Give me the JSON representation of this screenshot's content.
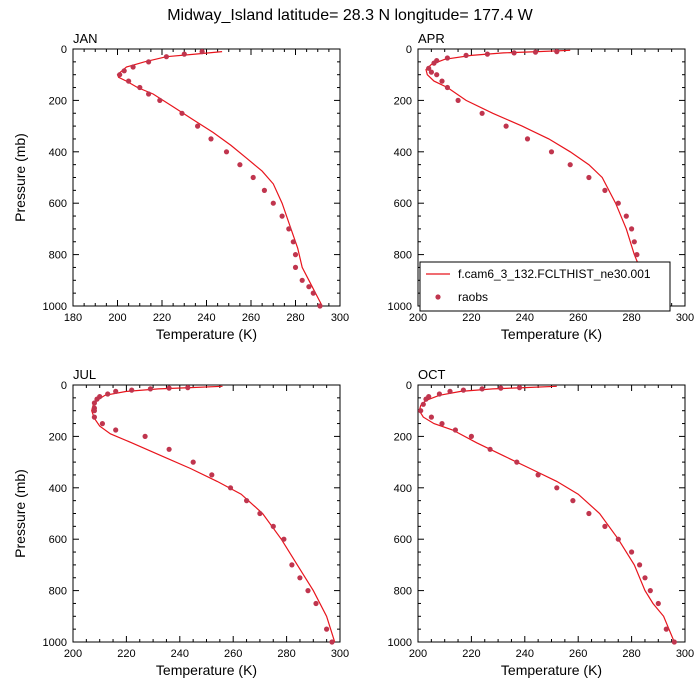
{
  "title": "Midway_Island  latitude= 28.3 N longitude= 177.4 W",
  "colors": {
    "model_line": "#e8141c",
    "obs_marker": "#c0354e",
    "axis": "#000000"
  },
  "legend": {
    "position": "lower-left of APR panel",
    "model_label": "f.cam6_3_132.FCLTHIST_ne30.001",
    "obs_label": "raobs"
  },
  "chart_data": [
    {
      "type": "line",
      "panel_title": "JAN",
      "xlabel": "Temperature (K)",
      "ylabel": "Pressure (mb)",
      "xlim": [
        180,
        300
      ],
      "ylim": [
        1000,
        0
      ],
      "y_reversed": true,
      "xticks": [
        "180",
        "200",
        "220",
        "240",
        "260",
        "280",
        "300"
      ],
      "yticks": [
        "0",
        "200",
        "400",
        "600",
        "800",
        "1000"
      ],
      "series": [
        {
          "kind": "line",
          "x": [
            247,
            235,
            222,
            212,
            204,
            200,
            200.5,
            204,
            209,
            216,
            225,
            234,
            243,
            251,
            258,
            265,
            270,
            274,
            278,
            281,
            283,
            286,
            289,
            292
          ],
          "y": [
            10,
            20,
            30,
            50,
            70,
            100,
            110,
            125,
            150,
            175,
            225,
            275,
            325,
            375,
            425,
            475,
            525,
            600,
            700,
            775,
            850,
            900,
            950,
            1000
          ]
        },
        {
          "kind": "scatter",
          "x": [
            238,
            230,
            222,
            214,
            207,
            203,
            201,
            205,
            210,
            214,
            219,
            229,
            236,
            242,
            249,
            255,
            261,
            266,
            270,
            274,
            277,
            279,
            280,
            280,
            283,
            286,
            288,
            291
          ],
          "y": [
            10,
            20,
            30,
            50,
            70,
            85,
            100,
            125,
            150,
            175,
            200,
            250,
            300,
            350,
            400,
            450,
            500,
            550,
            600,
            650,
            700,
            750,
            800,
            850,
            900,
            925,
            950,
            1000
          ]
        }
      ]
    },
    {
      "type": "line",
      "panel_title": "APR",
      "xlabel": "Temperature (K)",
      "ylabel": "",
      "xlim": [
        200,
        300
      ],
      "ylim": [
        1000,
        0
      ],
      "y_reversed": true,
      "xticks": [
        "200",
        "220",
        "240",
        "260",
        "280",
        "300"
      ],
      "yticks": [
        "0",
        "200",
        "400",
        "600",
        "800",
        "1000"
      ],
      "series": [
        {
          "kind": "line",
          "x": [
            257,
            245,
            232,
            220,
            210,
            205,
            203,
            203.5,
            206,
            211,
            218,
            228,
            239,
            249,
            257,
            264,
            269,
            274,
            278,
            281,
            283,
            285,
            288,
            292
          ],
          "y": [
            5,
            10,
            15,
            25,
            40,
            60,
            80,
            100,
            125,
            150,
            200,
            250,
            300,
            350,
            400,
            450,
            500,
            600,
            700,
            800,
            850,
            900,
            950,
            1000
          ]
        },
        {
          "kind": "scatter",
          "x": [
            252,
            244,
            236,
            226,
            218,
            211,
            207,
            206,
            204,
            205,
            207,
            209,
            211,
            215,
            224,
            233,
            241,
            250,
            257,
            264,
            270,
            275,
            278,
            280,
            281,
            282,
            283,
            285,
            287,
            289,
            292
          ],
          "y": [
            10,
            12,
            15,
            20,
            25,
            35,
            45,
            55,
            75,
            90,
            100,
            125,
            150,
            200,
            250,
            300,
            350,
            400,
            450,
            500,
            550,
            600,
            650,
            700,
            750,
            800,
            850,
            900,
            925,
            950,
            1000
          ]
        }
      ]
    },
    {
      "type": "line",
      "panel_title": "JUL",
      "xlabel": "Temperature (K)",
      "ylabel": "Pressure (mb)",
      "xlim": [
        200,
        300
      ],
      "ylim": [
        1000,
        0
      ],
      "y_reversed": true,
      "xticks": [
        "200",
        "220",
        "240",
        "260",
        "280",
        "300"
      ],
      "yticks": [
        "0",
        "200",
        "400",
        "600",
        "800",
        "1000"
      ],
      "series": [
        {
          "kind": "line",
          "x": [
            256,
            244,
            232,
            220,
            212,
            209,
            207.5,
            207,
            208,
            210,
            214,
            222,
            233,
            244,
            254,
            263,
            271,
            278,
            284,
            290,
            295,
            298
          ],
          "y": [
            5,
            10,
            15,
            25,
            40,
            60,
            80,
            100,
            130,
            160,
            190,
            225,
            275,
            325,
            375,
            425,
            500,
            600,
            700,
            800,
            900,
            1000
          ]
        },
        {
          "kind": "scatter",
          "x": [
            243,
            236,
            229,
            222,
            216,
            213,
            210,
            209,
            208,
            208,
            208,
            208,
            211,
            216,
            227,
            236,
            245,
            252,
            259,
            265,
            270,
            275,
            279,
            282,
            285,
            288,
            291,
            295,
            297
          ],
          "y": [
            10,
            12,
            15,
            20,
            25,
            35,
            45,
            55,
            70,
            90,
            100,
            125,
            150,
            175,
            200,
            250,
            300,
            350,
            400,
            450,
            500,
            550,
            600,
            700,
            750,
            800,
            850,
            950,
            1000
          ]
        }
      ]
    },
    {
      "type": "line",
      "panel_title": "OCT",
      "xlabel": "Temperature (K)",
      "ylabel": "",
      "xlim": [
        200,
        300
      ],
      "ylim": [
        1000,
        0
      ],
      "y_reversed": true,
      "xticks": [
        "200",
        "220",
        "240",
        "260",
        "280",
        "300"
      ],
      "yticks": [
        "0",
        "200",
        "400",
        "600",
        "800",
        "1000"
      ],
      "series": [
        {
          "kind": "line",
          "x": [
            252,
            240,
            228,
            216,
            208,
            203,
            201,
            200.5,
            202,
            206,
            213,
            222,
            232,
            242,
            252,
            260,
            268,
            275,
            281,
            285,
            288,
            292,
            296
          ],
          "y": [
            5,
            10,
            15,
            25,
            40,
            60,
            80,
            100,
            125,
            150,
            175,
            225,
            275,
            325,
            375,
            425,
            500,
            600,
            700,
            800,
            850,
            900,
            1000
          ]
        },
        {
          "kind": "scatter",
          "x": [
            238,
            231,
            224,
            217,
            212,
            208,
            204,
            203,
            202,
            201,
            205,
            209,
            214,
            220,
            227,
            237,
            245,
            252,
            258,
            264,
            270,
            275,
            280,
            283,
            285,
            287,
            290,
            293,
            296
          ],
          "y": [
            10,
            12,
            15,
            20,
            25,
            35,
            45,
            55,
            75,
            100,
            125,
            150,
            175,
            200,
            250,
            300,
            350,
            400,
            450,
            500,
            550,
            600,
            650,
            700,
            750,
            800,
            850,
            950,
            1000
          ]
        }
      ]
    }
  ]
}
